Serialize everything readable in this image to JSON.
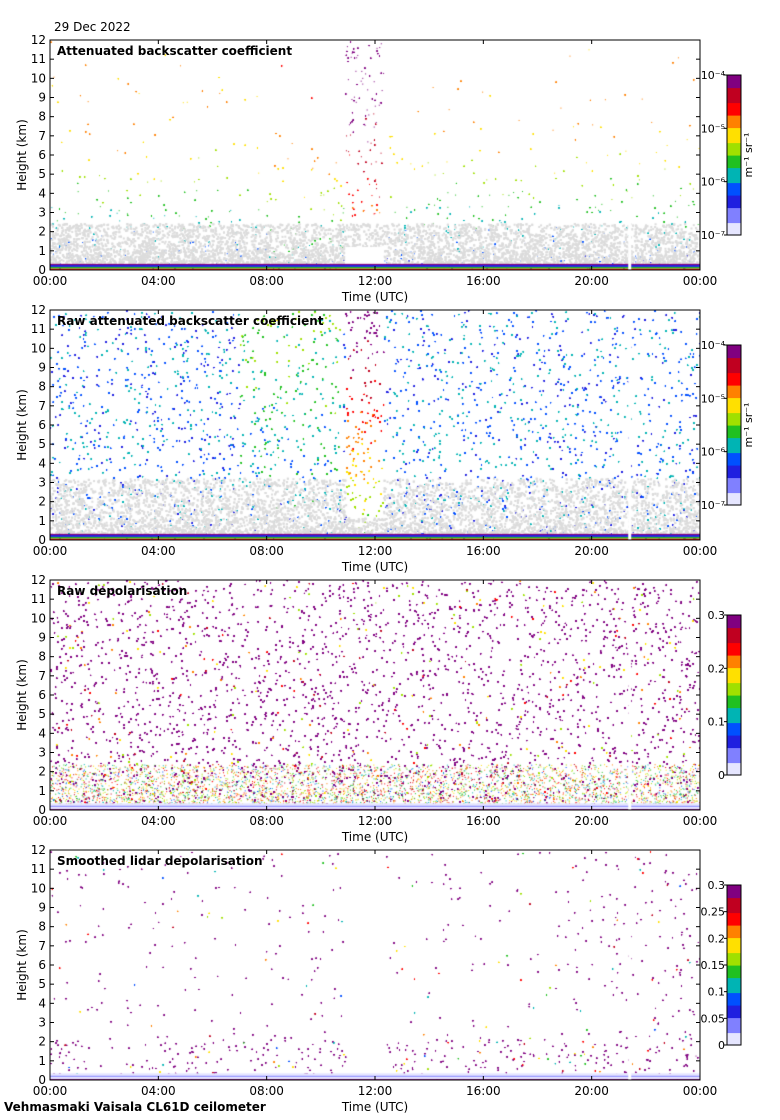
{
  "date": "29 Dec 2022",
  "footer": "Vehmasmaki Vaisala CL61D ceilometer",
  "colors": {
    "gray": "#dcdcdc",
    "cmap": [
      "#e6e6ff",
      "#8080ff",
      "#2020e0",
      "#0050ff",
      "#00b4b4",
      "#20c020",
      "#a0e000",
      "#ffe000",
      "#ff8000",
      "#ff0000",
      "#c00020",
      "#800080"
    ]
  },
  "chart_data": [
    {
      "type": "heatmap",
      "title": "Attenuated backscatter coefficient",
      "xlabel": "Time (UTC)",
      "ylabel": "Height (km)",
      "xlim": [
        0,
        24
      ],
      "ylim": [
        0,
        12
      ],
      "xticks": [
        0,
        4,
        8,
        12,
        16,
        20,
        24
      ],
      "xticklabels": [
        "00:00",
        "04:00",
        "08:00",
        "12:00",
        "16:00",
        "20:00",
        "00:00"
      ],
      "yticks": [
        0,
        1,
        2,
        3,
        4,
        5,
        6,
        7,
        8,
        9,
        10,
        11,
        12
      ],
      "colorbar": {
        "scale": "log",
        "label": "m⁻¹ sr⁻¹",
        "ticks": [
          "10⁻⁷",
          "10⁻⁶",
          "10⁻⁵",
          "10⁻⁴"
        ],
        "range": [
          1e-07,
          0.0001
        ]
      },
      "features": {
        "mode": "backscatter",
        "cloud_period_hours": [
          10.9,
          12.3
        ],
        "data_gap_hours": 21.35
      }
    },
    {
      "type": "heatmap",
      "title": "Raw attenuated backscatter coefficient",
      "xlabel": "Time (UTC)",
      "ylabel": "Height (km)",
      "xlim": [
        0,
        24
      ],
      "ylim": [
        0,
        12
      ],
      "xticks": [
        0,
        4,
        8,
        12,
        16,
        20,
        24
      ],
      "xticklabels": [
        "00:00",
        "04:00",
        "08:00",
        "12:00",
        "16:00",
        "20:00",
        "00:00"
      ],
      "yticks": [
        0,
        1,
        2,
        3,
        4,
        5,
        6,
        7,
        8,
        9,
        10,
        11,
        12
      ],
      "colorbar": {
        "scale": "log",
        "label": "m⁻¹ sr⁻¹",
        "ticks": [
          "10⁻⁷",
          "10⁻⁶",
          "10⁻⁵",
          "10⁻⁴"
        ],
        "range": [
          1e-07,
          0.0001
        ]
      },
      "features": {
        "mode": "raw_backscatter",
        "cloud_period_hours": [
          10.9,
          12.3
        ],
        "data_gap_hours": 21.35
      }
    },
    {
      "type": "heatmap",
      "title": "Raw depolarisation",
      "xlabel": "Time (UTC)",
      "ylabel": "Height (km)",
      "xlim": [
        0,
        24
      ],
      "ylim": [
        0,
        12
      ],
      "xticks": [
        0,
        4,
        8,
        12,
        16,
        20,
        24
      ],
      "xticklabels": [
        "00:00",
        "04:00",
        "08:00",
        "12:00",
        "16:00",
        "20:00",
        "00:00"
      ],
      "yticks": [
        0,
        1,
        2,
        3,
        4,
        5,
        6,
        7,
        8,
        9,
        10,
        11,
        12
      ],
      "colorbar": {
        "scale": "linear",
        "label": "",
        "ticks": [
          "0",
          "0.1",
          "0.2",
          "0.3"
        ],
        "range": [
          0,
          0.3
        ]
      },
      "features": {
        "mode": "raw_depol",
        "data_gap_hours": 21.35
      }
    },
    {
      "type": "heatmap",
      "title": "Smoothed lidar depolarisation",
      "xlabel": "Time (UTC)",
      "ylabel": "Height (km)",
      "xlim": [
        0,
        24
      ],
      "ylim": [
        0,
        12
      ],
      "xticks": [
        0,
        4,
        8,
        12,
        16,
        20,
        24
      ],
      "xticklabels": [
        "00:00",
        "04:00",
        "08:00",
        "12:00",
        "16:00",
        "20:00",
        "00:00"
      ],
      "yticks": [
        0,
        1,
        2,
        3,
        4,
        5,
        6,
        7,
        8,
        9,
        10,
        11,
        12
      ],
      "colorbar": {
        "scale": "linear",
        "label": "",
        "ticks": [
          "0",
          "0.05",
          "0.1",
          "0.15",
          "0.2",
          "0.25",
          "0.3"
        ],
        "range": [
          0,
          0.3
        ]
      },
      "features": {
        "mode": "smoothed_depol",
        "cloud_period_hours": [
          10.9,
          12.3
        ],
        "data_gap_hours": 21.35
      }
    }
  ]
}
